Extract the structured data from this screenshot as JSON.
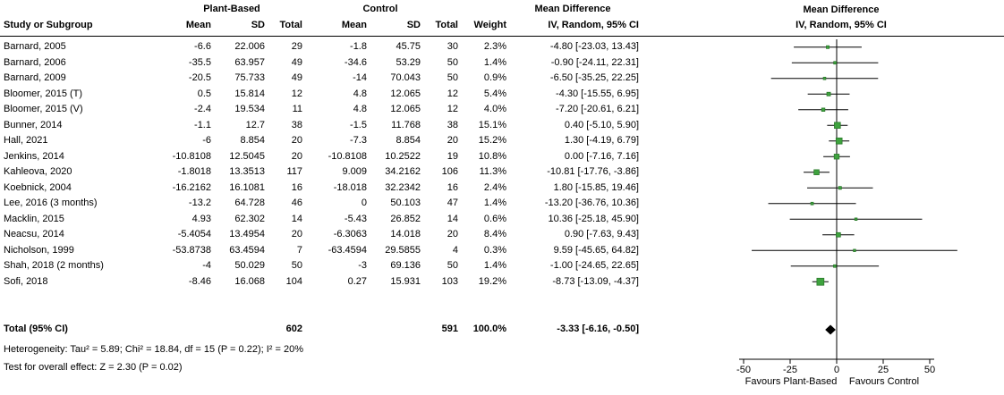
{
  "header": {
    "group1": "Plant-Based",
    "group2": "Control",
    "md_col": "Mean Difference",
    "col_study": "Study or Subgroup",
    "col_mean": "Mean",
    "col_sd": "SD",
    "col_total": "Total",
    "col_weight": "Weight",
    "col_ci": "IV, Random, 95% CI",
    "plot_title": "Mean Difference",
    "plot_sub": "IV, Random, 95% CI"
  },
  "chart_data": {
    "type": "forest",
    "effect_measure": "Mean Difference, IV, Random, 95% CI",
    "marker_color": "#3fa33f",
    "marker_edge": "#2b7a2b",
    "line_color": "#000000",
    "summary_color": "#000000",
    "studies": [
      {
        "name": "Barnard, 2005",
        "mean1": "-6.6",
        "sd1": "22.006",
        "n1": "29",
        "mean2": "-1.8",
        "sd2": "45.75",
        "n2": "30",
        "weight": "2.3%",
        "label": "-4.80 [-23.03, 13.43]",
        "md": -4.8,
        "lo": -23.03,
        "hi": 13.43
      },
      {
        "name": "Barnard, 2006",
        "mean1": "-35.5",
        "sd1": "63.957",
        "n1": "49",
        "mean2": "-34.6",
        "sd2": "53.29",
        "n2": "50",
        "weight": "1.4%",
        "label": "-0.90 [-24.11, 22.31]",
        "md": -0.9,
        "lo": -24.11,
        "hi": 22.31
      },
      {
        "name": "Barnard, 2009",
        "mean1": "-20.5",
        "sd1": "75.733",
        "n1": "49",
        "mean2": "-14",
        "sd2": "70.043",
        "n2": "50",
        "weight": "0.9%",
        "label": "-6.50 [-35.25, 22.25]",
        "md": -6.5,
        "lo": -35.25,
        "hi": 22.25
      },
      {
        "name": "Bloomer, 2015 (T)",
        "mean1": "0.5",
        "sd1": "15.814",
        "n1": "12",
        "mean2": "4.8",
        "sd2": "12.065",
        "n2": "12",
        "weight": "5.4%",
        "label": "-4.30 [-15.55, 6.95]",
        "md": -4.3,
        "lo": -15.55,
        "hi": 6.95
      },
      {
        "name": "Bloomer, 2015 (V)",
        "mean1": "-2.4",
        "sd1": "19.534",
        "n1": "11",
        "mean2": "4.8",
        "sd2": "12.065",
        "n2": "12",
        "weight": "4.0%",
        "label": "-7.20 [-20.61, 6.21]",
        "md": -7.2,
        "lo": -20.61,
        "hi": 6.21
      },
      {
        "name": "Bunner, 2014",
        "mean1": "-1.1",
        "sd1": "12.7",
        "n1": "38",
        "mean2": "-1.5",
        "sd2": "11.768",
        "n2": "38",
        "weight": "15.1%",
        "label": "0.40 [-5.10, 5.90]",
        "md": 0.4,
        "lo": -5.1,
        "hi": 5.9
      },
      {
        "name": "Hall, 2021",
        "mean1": "-6",
        "sd1": "8.854",
        "n1": "20",
        "mean2": "-7.3",
        "sd2": "8.854",
        "n2": "20",
        "weight": "15.2%",
        "label": "1.30 [-4.19, 6.79]",
        "md": 1.3,
        "lo": -4.19,
        "hi": 6.79
      },
      {
        "name": "Jenkins, 2014",
        "mean1": "-10.8108",
        "sd1": "12.5045",
        "n1": "20",
        "mean2": "-10.8108",
        "sd2": "10.2522",
        "n2": "19",
        "weight": "10.8%",
        "label": "0.00 [-7.16, 7.16]",
        "md": 0.0,
        "lo": -7.16,
        "hi": 7.16
      },
      {
        "name": "Kahleova, 2020",
        "mean1": "-1.8018",
        "sd1": "13.3513",
        "n1": "117",
        "mean2": "9.009",
        "sd2": "34.2162",
        "n2": "106",
        "weight": "11.3%",
        "label": "-10.81 [-17.76, -3.86]",
        "md": -10.81,
        "lo": -17.76,
        "hi": -3.86
      },
      {
        "name": "Koebnick, 2004",
        "mean1": "-16.2162",
        "sd1": "16.1081",
        "n1": "16",
        "mean2": "-18.018",
        "sd2": "32.2342",
        "n2": "16",
        "weight": "2.4%",
        "label": "1.80 [-15.85, 19.46]",
        "md": 1.8,
        "lo": -15.85,
        "hi": 19.46
      },
      {
        "name": "Lee, 2016 (3 months)",
        "mean1": "-13.2",
        "sd1": "64.728",
        "n1": "46",
        "mean2": "0",
        "sd2": "50.103",
        "n2": "47",
        "weight": "1.4%",
        "label": "-13.20 [-36.76, 10.36]",
        "md": -13.2,
        "lo": -36.76,
        "hi": 10.36
      },
      {
        "name": "Macklin, 2015",
        "mean1": "4.93",
        "sd1": "62.302",
        "n1": "14",
        "mean2": "-5.43",
        "sd2": "26.852",
        "n2": "14",
        "weight": "0.6%",
        "label": "10.36 [-25.18, 45.90]",
        "md": 10.36,
        "lo": -25.18,
        "hi": 45.9
      },
      {
        "name": "Neacsu, 2014",
        "mean1": "-5.4054",
        "sd1": "13.4954",
        "n1": "20",
        "mean2": "-6.3063",
        "sd2": "14.018",
        "n2": "20",
        "weight": "8.4%",
        "label": "0.90 [-7.63, 9.43]",
        "md": 0.9,
        "lo": -7.63,
        "hi": 9.43
      },
      {
        "name": "Nicholson, 1999",
        "mean1": "-53.8738",
        "sd1": "63.4594",
        "n1": "7",
        "mean2": "-63.4594",
        "sd2": "29.5855",
        "n2": "4",
        "weight": "0.3%",
        "label": "9.59 [-45.65, 64.82]",
        "md": 9.59,
        "lo": -45.65,
        "hi": 64.82
      },
      {
        "name": "Shah, 2018 (2 months)",
        "mean1": "-4",
        "sd1": "50.029",
        "n1": "50",
        "mean2": "-3",
        "sd2": "69.136",
        "n2": "50",
        "weight": "1.4%",
        "label": "-1.00 [-24.65, 22.65]",
        "md": -1.0,
        "lo": -24.65,
        "hi": 22.65
      },
      {
        "name": "Sofi, 2018",
        "mean1": "-8.46",
        "sd1": "16.068",
        "n1": "104",
        "mean2": "0.27",
        "sd2": "15.931",
        "n2": "103",
        "weight": "19.2%",
        "label": "-8.73 [-13.09, -4.37]",
        "md": -8.73,
        "lo": -13.09,
        "hi": -4.37
      }
    ],
    "total": {
      "name": "Total (95% CI)",
      "n1": "602",
      "n2": "591",
      "weight": "100.0%",
      "label": "-3.33 [-6.16, -0.50]",
      "md": -3.33,
      "lo": -6.16,
      "hi": -0.5
    },
    "axis": {
      "ticks": [
        -50,
        -25,
        0,
        25,
        50
      ],
      "min": -70,
      "max": 70
    },
    "favours_left": "Favours Plant-Based",
    "favours_right": "Favours Control"
  },
  "footnotes": {
    "heterogeneity": "Heterogeneity: Tau² = 5.89; Chi² = 18.84, df = 15 (P = 0.22); I² = 20%",
    "overall": "Test for overall effect: Z = 2.30 (P = 0.02)"
  }
}
